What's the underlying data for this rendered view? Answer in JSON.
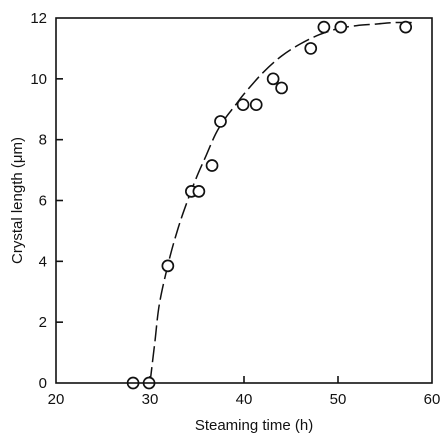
{
  "chart_data": {
    "type": "scatter",
    "title": "",
    "xlabel": "Steaming time (h)",
    "ylabel": "Crystal length (μm)",
    "xlim": [
      20,
      60
    ],
    "ylim": [
      0,
      12
    ],
    "x_ticks": [
      20,
      30,
      40,
      50,
      60
    ],
    "y_ticks": [
      0,
      2,
      4,
      6,
      8,
      10,
      12
    ],
    "grid": false,
    "legend": "none",
    "marker": "open-circle",
    "points": [
      {
        "x": 28.2,
        "y": 0
      },
      {
        "x": 29.9,
        "y": 0
      },
      {
        "x": 31.9,
        "y": 3.85
      },
      {
        "x": 34.4,
        "y": 6.3
      },
      {
        "x": 35.2,
        "y": 6.3
      },
      {
        "x": 36.6,
        "y": 7.15
      },
      {
        "x": 37.5,
        "y": 8.6
      },
      {
        "x": 39.9,
        "y": 9.15
      },
      {
        "x": 41.3,
        "y": 9.15
      },
      {
        "x": 43.1,
        "y": 10.0
      },
      {
        "x": 44.0,
        "y": 9.7
      },
      {
        "x": 47.1,
        "y": 11.0
      },
      {
        "x": 48.5,
        "y": 11.7
      },
      {
        "x": 50.3,
        "y": 11.7
      },
      {
        "x": 57.2,
        "y": 11.7
      }
    ],
    "fit_curve": {
      "style": "dashed",
      "x": [
        30,
        30.5,
        31,
        32,
        33,
        34,
        35,
        36,
        37,
        38,
        39,
        40,
        42,
        44,
        46,
        48,
        50,
        52,
        54,
        56,
        58
      ],
      "y": [
        0,
        1.3,
        2.6,
        4.0,
        5.1,
        6.0,
        6.8,
        7.5,
        8.2,
        8.7,
        9.1,
        9.5,
        10.2,
        10.75,
        11.15,
        11.45,
        11.65,
        11.75,
        11.8,
        11.85,
        11.85
      ]
    }
  }
}
